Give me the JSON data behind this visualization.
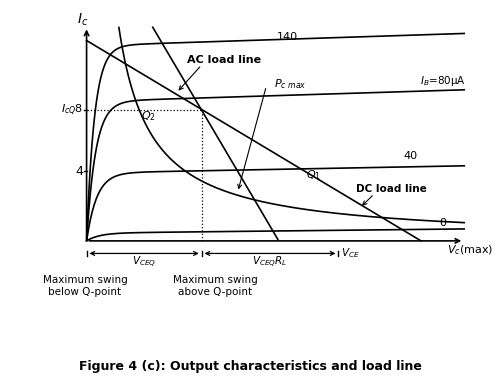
{
  "title": "Figure 4 (c): Output characteristics and load line",
  "bg_color": "#ffffff",
  "ic_label": "$I_c$",
  "vc_max_label": "$V_c$(max)",
  "ib_label": "$I_B$=80μA",
  "pc_max_label": "$P_{c\\ max}$",
  "ac_load_label": "AC load line",
  "dc_load_label": "DC load line",
  "icq_label": "$I_{cQ}$8",
  "four_label": "4",
  "q1_label": "$Q_1$",
  "q2_label": "$Q_2$",
  "label_140": "140",
  "label_40": "40",
  "label_0": "0",
  "vceq_label": "$V_{CEQ}$",
  "vceqrl_label": "$V_{CEQ}R_L$",
  "vce_label": "$V_{CE}$",
  "swing_below": "Maximum swing\nbelow Q-point",
  "swing_above": "Maximum swing\nabove Q-point",
  "xmax": 10.0,
  "ymax": 12.0,
  "q2_vce": 3.2,
  "q2_ic": 7.5,
  "q1_vce": 5.8,
  "q1_ic": 3.5,
  "vce_point": 7.0,
  "ic_4": 4.0
}
